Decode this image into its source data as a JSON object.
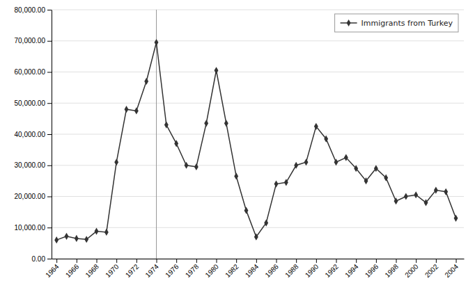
{
  "chart_data": {
    "type": "line",
    "x": [
      1964,
      1965,
      1966,
      1967,
      1968,
      1969,
      1970,
      1971,
      1972,
      1973,
      1974,
      1975,
      1976,
      1977,
      1978,
      1979,
      1980,
      1981,
      1982,
      1983,
      1984,
      1985,
      1986,
      1987,
      1988,
      1989,
      1990,
      1991,
      1992,
      1993,
      1994,
      1995,
      1996,
      1997,
      1998,
      1999,
      2000,
      2001,
      2002,
      2003,
      2004
    ],
    "series": [
      {
        "name": "Immigrants from Turkey",
        "color": "#333333",
        "marker": "diamond",
        "line_style": "solid",
        "values": [
          6000,
          7200,
          6500,
          6200,
          8800,
          8500,
          31000,
          48000,
          47500,
          57000,
          69500,
          43000,
          37000,
          30000,
          29500,
          43500,
          60500,
          43500,
          26500,
          15500,
          7000,
          11500,
          24000,
          24500,
          30000,
          31000,
          42500,
          38500,
          31000,
          32500,
          29000,
          25000,
          29000,
          26000,
          18500,
          20000,
          20500,
          18000,
          22000,
          21500,
          13000
        ]
      }
    ],
    "vlines": [
      {
        "x": 1974,
        "color": "#999999"
      }
    ],
    "xlim": [
      1963.5,
      2004.8
    ],
    "xticks": [
      1964,
      1966,
      1968,
      1970,
      1972,
      1974,
      1976,
      1978,
      1980,
      1982,
      1984,
      1986,
      1988,
      1990,
      1992,
      1994,
      1996,
      1998,
      2000,
      2002,
      2004
    ],
    "ylim": [
      0,
      80000
    ],
    "yticks": [
      {
        "value": 0,
        "label": "0.00"
      },
      {
        "value": 10000,
        "label": "10,000.00"
      },
      {
        "value": 20000,
        "label": "20,000.00"
      },
      {
        "value": 30000,
        "label": "30,000.00"
      },
      {
        "value": 40000,
        "label": "40,000.00"
      },
      {
        "value": 50000,
        "label": "50,000.00"
      },
      {
        "value": 60000,
        "label": "60,000.00"
      },
      {
        "value": 70000,
        "label": "70,000.00"
      },
      {
        "value": 80000,
        "label": "80,000.00"
      }
    ],
    "grid": "y",
    "legend": "top-right"
  }
}
